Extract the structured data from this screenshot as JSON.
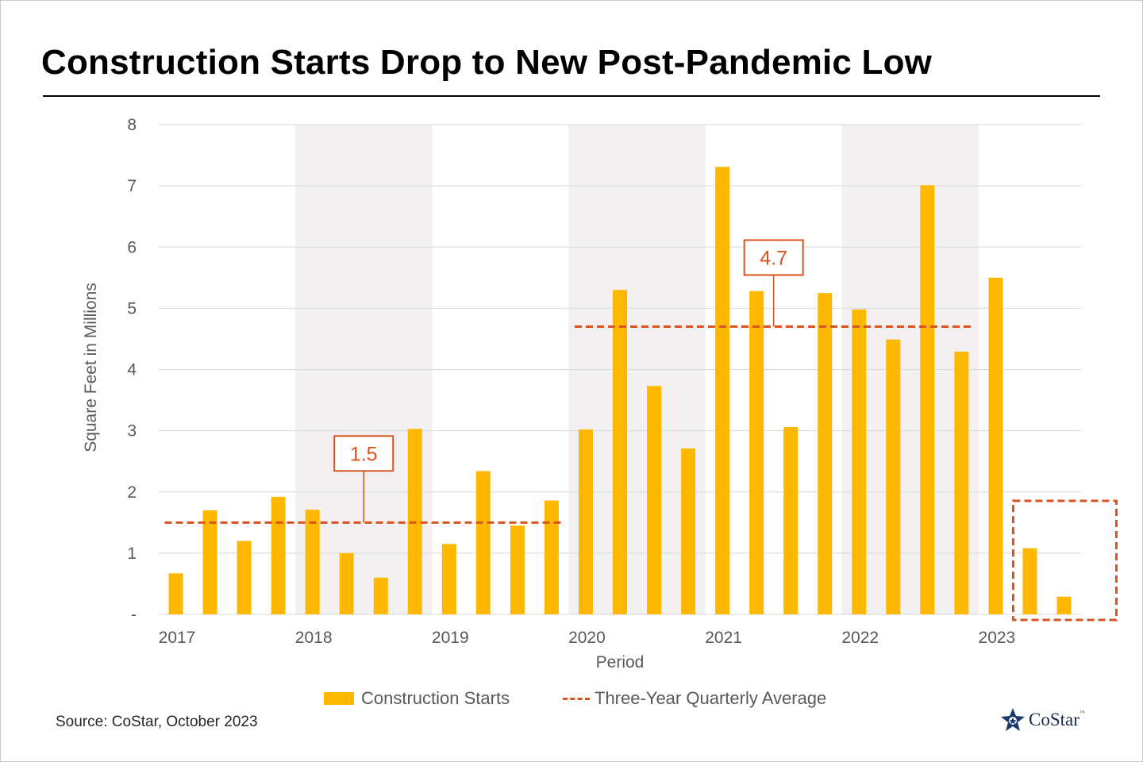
{
  "title": "Construction Starts Drop to New Post-Pandemic Low",
  "source": "Source: CoStar, October 2023",
  "logo": {
    "name": "CoStar",
    "tm": "™"
  },
  "colors": {
    "bar": "#FFB800",
    "average_line": "#D9531E",
    "band": "#F2F0F0",
    "grid": "#D9D9D9",
    "axis_text": "#595959"
  },
  "chart_data": {
    "type": "bar",
    "title": "Construction Starts Drop to New Post-Pandemic Low",
    "xlabel": "Period",
    "ylabel": "Square Feet in Millions",
    "ylim": [
      0,
      8
    ],
    "yticks": [
      "-",
      "1",
      "2",
      "3",
      "4",
      "5",
      "6",
      "7",
      "8"
    ],
    "year_labels": [
      "2017",
      "2018",
      "2019",
      "2020",
      "2021",
      "2022",
      "2023"
    ],
    "shaded_years": [
      "2018",
      "2020",
      "2022"
    ],
    "categories": [
      "2017 Q1",
      "2017 Q2",
      "2017 Q3",
      "2017 Q4",
      "2018 Q1",
      "2018 Q2",
      "2018 Q3",
      "2018 Q4",
      "2019 Q1",
      "2019 Q2",
      "2019 Q3",
      "2019 Q4",
      "2020 Q1",
      "2020 Q2",
      "2020 Q3",
      "2020 Q4",
      "2021 Q1",
      "2021 Q2",
      "2021 Q3",
      "2021 Q4",
      "2022 Q1",
      "2022 Q2",
      "2022 Q3",
      "2022 Q4",
      "2023 Q1",
      "2023 Q2",
      "2023 Q3"
    ],
    "series": [
      {
        "name": "Construction Starts",
        "values": [
          0.67,
          1.7,
          1.2,
          1.92,
          1.71,
          1.0,
          0.6,
          3.03,
          1.15,
          2.34,
          1.45,
          1.86,
          3.02,
          5.3,
          3.73,
          2.71,
          7.31,
          5.28,
          3.06,
          5.25,
          4.98,
          4.49,
          7.01,
          4.29,
          5.5,
          1.08,
          0.29
        ]
      },
      {
        "name": "Three-Year Quarterly Average",
        "segments": [
          {
            "start": "2017 Q1",
            "end": "2019 Q4",
            "value": 1.5,
            "label": "1.5"
          },
          {
            "start": "2020 Q1",
            "end": "2022 Q4",
            "value": 4.7,
            "label": "4.7"
          }
        ]
      }
    ],
    "highlight": {
      "start": "2023 Q2",
      "end": "2023 Q3"
    },
    "grid": true,
    "legend_position": "bottom"
  }
}
